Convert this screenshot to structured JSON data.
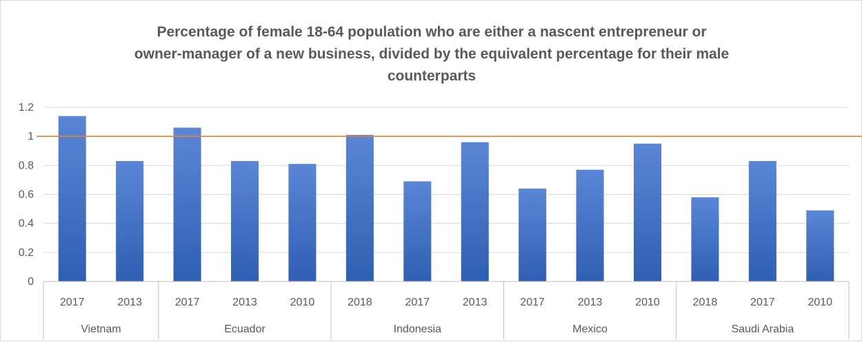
{
  "chart_data": {
    "type": "bar",
    "title": "Percentage of female 18-64 population  who are either a nascent entrepreneur or\nowner-manager of a new business, divided by the equivalent percentage for their male\ncounterparts",
    "xlabel": "",
    "ylabel": "",
    "ylim": [
      0,
      1.2
    ],
    "yticks": [
      "0",
      "0.2",
      "0.4",
      "0.6",
      "0.8",
      "1",
      "1.2"
    ],
    "grid": true,
    "legend": "none",
    "reference_line": {
      "value": 1,
      "color": "#ed7d31"
    },
    "bar_color": "#4472c4",
    "groups": [
      {
        "name": "Vietnam",
        "categories": [
          "2017",
          "2013"
        ],
        "values": [
          1.14,
          0.83
        ]
      },
      {
        "name": "Ecuador",
        "categories": [
          "2017",
          "2013",
          "2010"
        ],
        "values": [
          1.06,
          0.83,
          0.81
        ]
      },
      {
        "name": "Indonesia",
        "categories": [
          "2018",
          "2017",
          "2013"
        ],
        "values": [
          1.01,
          0.69,
          0.96
        ]
      },
      {
        "name": "Mexico",
        "categories": [
          "2017",
          "2013",
          "2010"
        ],
        "values": [
          0.64,
          0.77,
          0.95
        ]
      },
      {
        "name": "Saudi Arabia",
        "categories": [
          "2018",
          "2017",
          "2010"
        ],
        "values": [
          0.58,
          0.83,
          0.49
        ]
      }
    ]
  }
}
